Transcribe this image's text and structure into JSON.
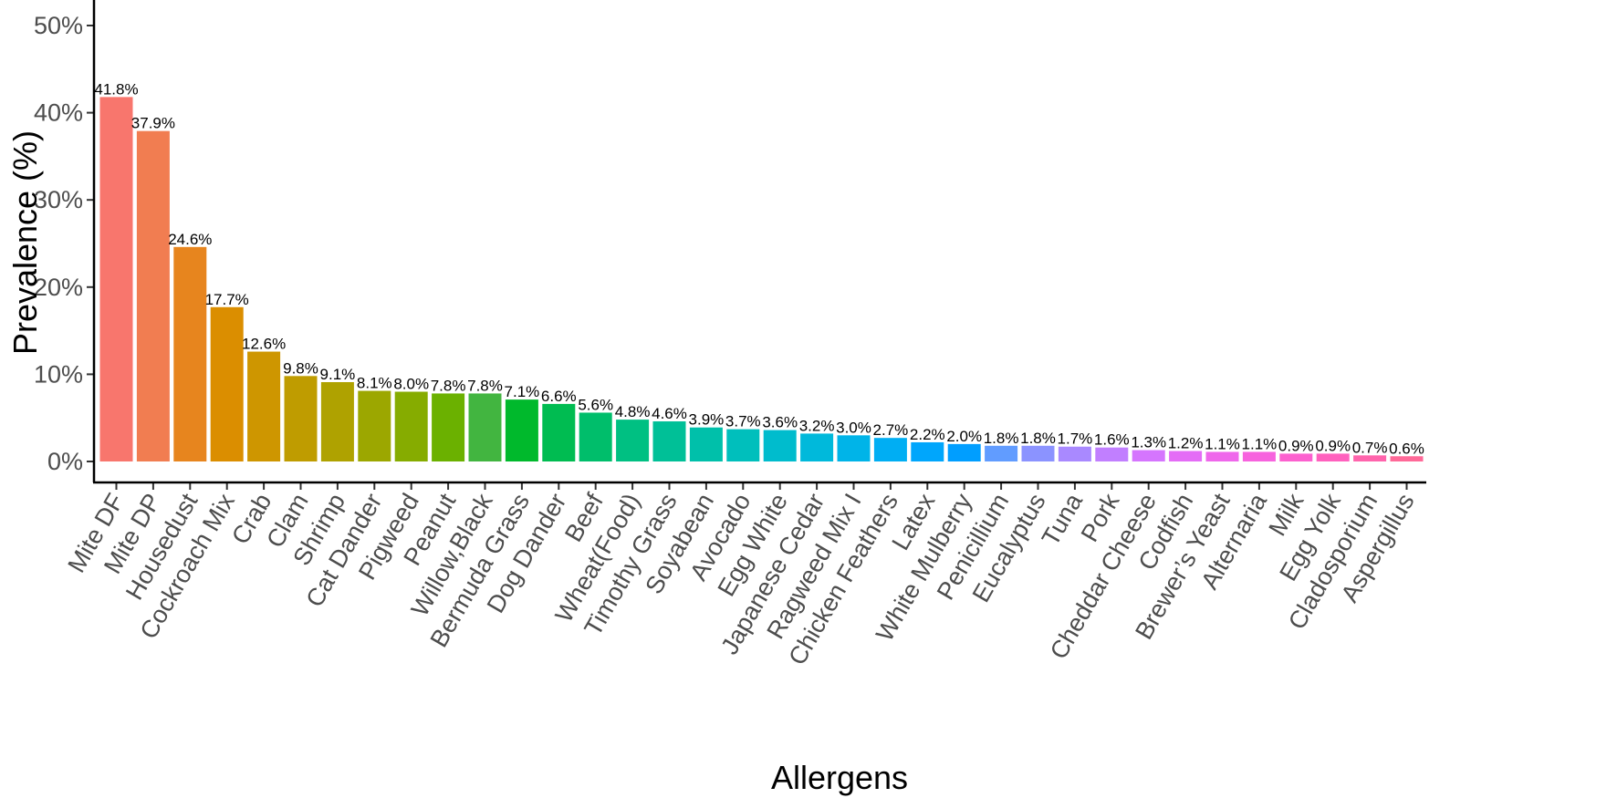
{
  "chart_data": {
    "type": "bar",
    "xlabel": "Allergens",
    "ylabel": "Prevalence (%)",
    "ylim": [
      0,
      50
    ],
    "yticks": [
      "0%",
      "10%",
      "20%",
      "30%",
      "40%",
      "50%"
    ],
    "ytick_values": [
      0,
      10,
      20,
      30,
      40,
      50
    ],
    "grid": false,
    "legend": "none",
    "categories": [
      "Mite DF",
      "Mite DP",
      "Housedust",
      "Cockroach Mix",
      "Crab",
      "Clam",
      "Shrimp",
      "Cat Dander",
      "Pigweed",
      "Peanut",
      "Willow,Black",
      "Bermuda Grass",
      "Dog Dander",
      "Beef",
      "Wheat(Food)",
      "Timothy Grass",
      "Soyabean",
      "Avocado",
      "Egg White",
      "Japanese Cedar",
      "Ragweed Mix I",
      "Chicken Feathers",
      "Latex",
      "White Mulberry",
      "Penicillium",
      "Eucalyptus",
      "Tuna",
      "Pork",
      "Cheddar Cheese",
      "Codfish",
      "Brewer’s Yeast",
      "Alternaria",
      "Milk",
      "Egg Yolk",
      "Cladosporium",
      "Aspergillus"
    ],
    "values": [
      41.8,
      37.9,
      24.6,
      17.7,
      12.6,
      9.8,
      9.1,
      8.1,
      8.0,
      7.8,
      7.8,
      7.1,
      6.6,
      5.6,
      4.8,
      4.6,
      3.9,
      3.7,
      3.6,
      3.2,
      3.0,
      2.7,
      2.2,
      2.0,
      1.8,
      1.8,
      1.7,
      1.6,
      1.3,
      1.2,
      1.1,
      1.1,
      0.9,
      0.9,
      0.7,
      0.6
    ],
    "value_labels": [
      "41.8%",
      "37.9%",
      "24.6%",
      "17.7%",
      "12.6%",
      "9.8%",
      "9.1%",
      "8.1%",
      "8.0%",
      "7.8%",
      "7.8%",
      "7.1%",
      "6.6%",
      "5.6%",
      "4.8%",
      "4.6%",
      "3.9%",
      "3.7%",
      "3.6%",
      "3.2%",
      "3.0%",
      "2.7%",
      "2.2%",
      "2.0%",
      "1.8%",
      "1.8%",
      "1.7%",
      "1.6%",
      "1.3%",
      "1.2%",
      "1.1%",
      "1.1%",
      "0.9%",
      "0.9%",
      "0.7%",
      "0.6%"
    ],
    "colors": [
      "#F8766D",
      "#F17D51",
      "#E7851E",
      "#DB8E00",
      "#CE9600",
      "#BF9C00",
      "#AFA200",
      "#9CA700",
      "#86AC00",
      "#6BB100",
      "#42B540",
      "#00B92C",
      "#00BC51",
      "#00BE6B",
      "#00C082",
      "#00C097",
      "#00C0AA",
      "#00BFBC",
      "#00BCCD",
      "#00B9DB",
      "#00B4E8",
      "#00AEF3",
      "#00A6FC",
      "#009EFF",
      "#619CFF",
      "#8B93FF",
      "#A989FF",
      "#C17FFF",
      "#D575FE",
      "#E46CF6",
      "#EF67EB",
      "#F763DE",
      "#FC61CF",
      "#FF61BE",
      "#FF64AC",
      "#FF6998"
    ]
  }
}
